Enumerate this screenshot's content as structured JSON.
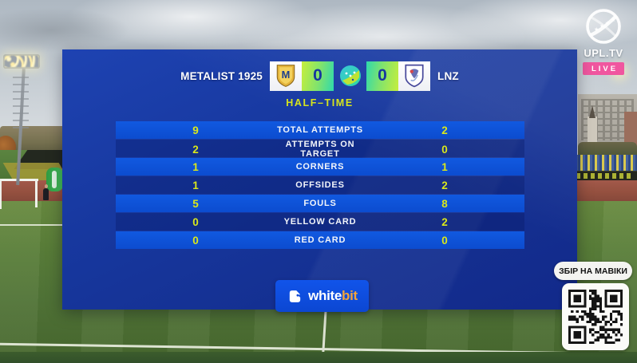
{
  "scoreboard": {
    "home_team": "METALIST 1925",
    "away_team": "LNZ",
    "home_score": "0",
    "away_score": "0",
    "period_label": "HALF–TIME",
    "stats": [
      {
        "label": "TOTAL ATTEMPTS",
        "home": "9",
        "away": "2"
      },
      {
        "label": "ATTEMPTS ON TARGET",
        "home": "2",
        "away": "0"
      },
      {
        "label": "CORNERS",
        "home": "1",
        "away": "1"
      },
      {
        "label": "OFFSIDES",
        "home": "1",
        "away": "2"
      },
      {
        "label": "FOULS",
        "home": "5",
        "away": "8"
      },
      {
        "label": "YELLOW CARD",
        "home": "0",
        "away": "2"
      },
      {
        "label": "RED CARD",
        "home": "0",
        "away": "0"
      }
    ],
    "sponsor": {
      "name_white": "white",
      "name_accent": "bit"
    }
  },
  "broadcast": {
    "channel": "UPL.TV",
    "live_label": "LIVE"
  },
  "qr_panel": {
    "caption": "ЗБІР НА МАВІКИ"
  },
  "icons": {
    "home_crest": "metalist-crest-icon",
    "away_crest": "lnz-crest-icon",
    "league_ball": "upl-ball-icon",
    "sponsor_logo": "whitebit-fox-icon",
    "channel_logo": "upl-tv-ball-icon",
    "qr": "qr-code"
  },
  "colors": {
    "panel_blue": "#16379e",
    "stat_row_blue": "#0d51d8",
    "value_yellow": "#d9e71b",
    "score_box_from": "#c6ee3c",
    "score_box_to": "#2ed9ad",
    "live_pink": "#f0569f",
    "sponsor_orange": "#f0a43c"
  }
}
